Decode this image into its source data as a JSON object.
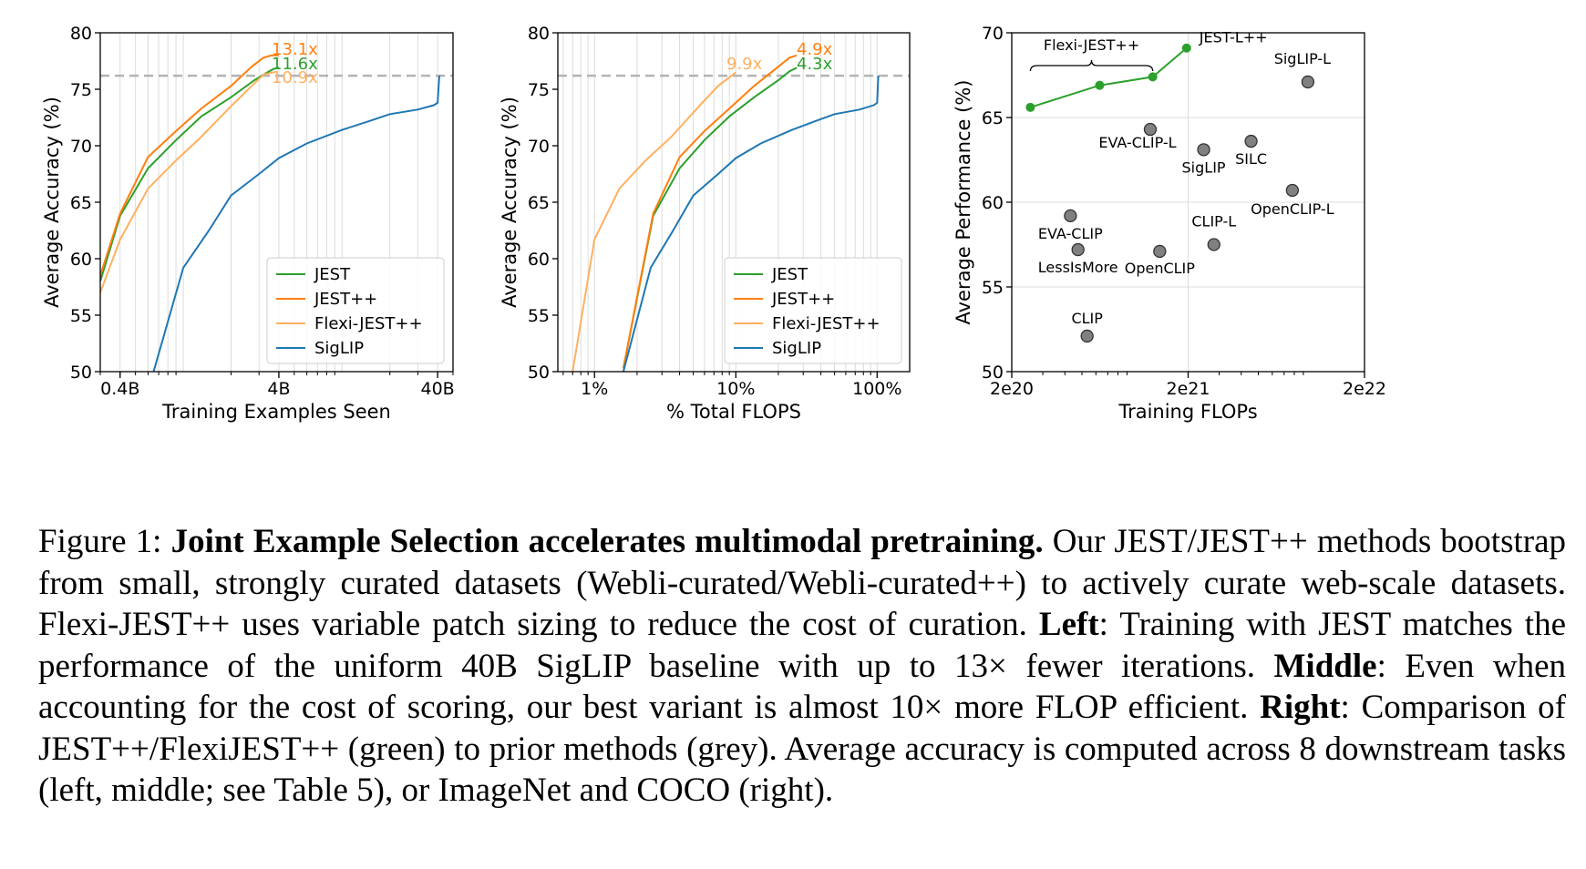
{
  "chart_data": [
    {
      "type": "line",
      "ylabel": "Average Accuracy (%)",
      "xlabel": "Training Examples Seen",
      "x_scale": "log",
      "xlim": [
        0.3,
        50
      ],
      "ylim": [
        50,
        80
      ],
      "x_ticks": [
        0.4,
        4,
        40
      ],
      "x_tick_labels": [
        "0.4B",
        "4B",
        "40B"
      ],
      "y_ticks": [
        50,
        55,
        60,
        65,
        70,
        75,
        80
      ],
      "grid": "x-minor",
      "reference_line": 76.2,
      "legend_position": "lower-right",
      "series": [
        {
          "name": "JEST",
          "color": "#2ca02c",
          "x": [
            0.3,
            0.4,
            0.6,
            0.9,
            1.3,
            2.0,
            2.8,
            3.3,
            3.7,
            4.0
          ],
          "y": [
            58,
            63.8,
            68,
            70.5,
            72.6,
            74.3,
            75.8,
            76.4,
            76.8,
            76.9
          ]
        },
        {
          "name": "JEST++",
          "color": "#ff7f0e",
          "x": [
            0.3,
            0.4,
            0.6,
            0.9,
            1.3,
            2.0,
            2.7,
            3.2,
            3.6,
            4.0
          ],
          "y": [
            58.5,
            64,
            69,
            71.3,
            73.3,
            75.3,
            77,
            77.8,
            78,
            78
          ]
        },
        {
          "name": "Flexi-JEST++",
          "color": "#ffb061",
          "x": [
            0.3,
            0.4,
            0.6,
            0.9,
            1.3,
            2.0,
            2.7,
            3.2,
            3.7
          ],
          "y": [
            57,
            61.7,
            66.2,
            68.7,
            70.8,
            73.5,
            75.3,
            76.3,
            76.5
          ]
        },
        {
          "name": "SigLIP",
          "color": "#1f77b4",
          "x": [
            0.65,
            1.0,
            1.45,
            2.0,
            3.0,
            4.0,
            6.0,
            10.0,
            15.0,
            20.0,
            30.0,
            38.0,
            40.0,
            41.0
          ],
          "y": [
            50,
            59.2,
            62.5,
            65.6,
            67.5,
            68.9,
            70.2,
            71.4,
            72.2,
            72.8,
            73.2,
            73.6,
            73.8,
            76.2
          ]
        }
      ],
      "annotations": [
        {
          "text": "13.1x",
          "color": "#ff7f0e"
        },
        {
          "text": "11.6x",
          "color": "#2ca02c"
        },
        {
          "text": "10.9x",
          "color": "#ffb061"
        }
      ]
    },
    {
      "type": "line",
      "ylabel": "Average Accuracy (%)",
      "xlabel": "% Total FLOPS",
      "x_scale": "log",
      "xlim": [
        0.55,
        170
      ],
      "ylim": [
        50,
        80
      ],
      "x_ticks": [
        1,
        10,
        100
      ],
      "x_tick_labels": [
        "1%",
        "10%",
        "100%"
      ],
      "y_ticks": [
        50,
        55,
        60,
        65,
        70,
        75,
        80
      ],
      "grid": "x-minor",
      "reference_line": 76.2,
      "legend_position": "lower-right",
      "series": [
        {
          "name": "JEST",
          "color": "#2ca02c",
          "x": [
            1.6,
            2.6,
            4.0,
            6.0,
            9.0,
            13.5,
            20.0,
            24.0,
            27.0
          ],
          "y": [
            50.3,
            63.8,
            68,
            70.5,
            72.6,
            74.3,
            75.8,
            76.6,
            76.9
          ]
        },
        {
          "name": "JEST++",
          "color": "#ff7f0e",
          "x": [
            1.6,
            2.6,
            4.0,
            6.0,
            9.0,
            13.5,
            20.0,
            24.0,
            27.0
          ],
          "y": [
            50.3,
            64,
            69,
            71.3,
            73.3,
            75.3,
            77,
            77.8,
            78
          ]
        },
        {
          "name": "Flexi-JEST++",
          "color": "#ffb061",
          "x": [
            0.7,
            1.0,
            1.5,
            2.3,
            3.5,
            5.5,
            7.5,
            10.0
          ],
          "y": [
            50,
            61.7,
            66.2,
            68.7,
            70.8,
            73.5,
            75.3,
            76.5
          ]
        },
        {
          "name": "SigLIP",
          "color": "#1f77b4",
          "x": [
            1.6,
            2.5,
            3.6,
            5.0,
            7.5,
            10.0,
            15.0,
            25.0,
            37.0,
            50.0,
            75.0,
            95.0,
            100.0,
            102.0
          ],
          "y": [
            50,
            59.2,
            62.5,
            65.6,
            67.5,
            68.9,
            70.2,
            71.4,
            72.2,
            72.8,
            73.2,
            73.6,
            73.8,
            76.2
          ]
        }
      ],
      "annotations": [
        {
          "text": "9.9x",
          "color": "#ffb061"
        },
        {
          "text": "4.9x",
          "color": "#ff7f0e"
        },
        {
          "text": "4.3x",
          "color": "#2ca02c"
        }
      ]
    },
    {
      "type": "scatter",
      "ylabel": "Average Performance (%)",
      "xlabel": "Training FLOPs",
      "x_scale": "log",
      "xlim": [
        2e+20,
        2e+22
      ],
      "ylim": [
        50,
        70
      ],
      "x_ticks": [
        2e+20,
        2e+21,
        2e+22
      ],
      "x_tick_labels": [
        "2e20",
        "2e21",
        "2e22"
      ],
      "y_ticks": [
        50,
        55,
        60,
        65,
        70
      ],
      "grid": "major",
      "series": [
        {
          "name": "",
          "color": "#2ca02c",
          "points": [
            {
              "label": "",
              "x": 2.55e+20,
              "y": 65.6
            },
            {
              "label": "",
              "x": 6.3e+20,
              "y": 66.9
            },
            {
              "label": "",
              "x": 1.26e+21,
              "y": 67.4
            },
            {
              "label": "JEST-L++",
              "x": 1.96e+21,
              "y": 69.1
            }
          ]
        },
        {
          "name": "",
          "color": "#808080",
          "points": [
            {
              "label": "EVA-CLIP-L",
              "x": 1.22e+21,
              "y": 64.3
            },
            {
              "label": "SigLIP",
              "x": 2.45e+21,
              "y": 63.1
            },
            {
              "label": "SILC",
              "x": 4.55e+21,
              "y": 63.6
            },
            {
              "label": "OpenCLIP-L",
              "x": 7.8e+21,
              "y": 60.7
            },
            {
              "label": "SigLIP-L",
              "x": 9.55e+21,
              "y": 67.1
            },
            {
              "label": "EVA-CLIP",
              "x": 4.3e+20,
              "y": 59.2
            },
            {
              "label": "LessIsMore",
              "x": 4.75e+20,
              "y": 57.2
            },
            {
              "label": "OpenCLIP",
              "x": 1.38e+21,
              "y": 57.1
            },
            {
              "label": "CLIP-L",
              "x": 2.8e+21,
              "y": 57.5
            },
            {
              "label": "CLIP",
              "x": 5.35e+20,
              "y": 52.1
            }
          ]
        }
      ],
      "bracket_label": "Flexi-JEST++"
    }
  ],
  "caption": {
    "figure_label": "Figure 1:",
    "title": "Joint Example Selection accelerates multimodal pretraining.",
    "intro": " Our JEST/JEST++ methods bootstrap from small, strongly curated datasets (Webli-curated/Webli-curated++) to actively curate web-scale datasets. Flexi-JEST++ uses variable patch sizing to reduce the cost of curation.",
    "left_label": "Left",
    "left_text": ": Training with JEST matches the performance of the uniform 40B SigLIP baseline with up to 13× fewer iterations. ",
    "middle_label": "Middle",
    "middle_text": ": Even when accounting for the cost of scoring, our best variant is almost 10× more FLOP efficient. ",
    "right_label": "Right",
    "right_text": ": Comparison of JEST++/FlexiJEST++ (green) to prior methods (grey). Average accuracy is computed across 8 downstream tasks (left, middle; see Table 5), or ImageNet and COCO (right)."
  }
}
